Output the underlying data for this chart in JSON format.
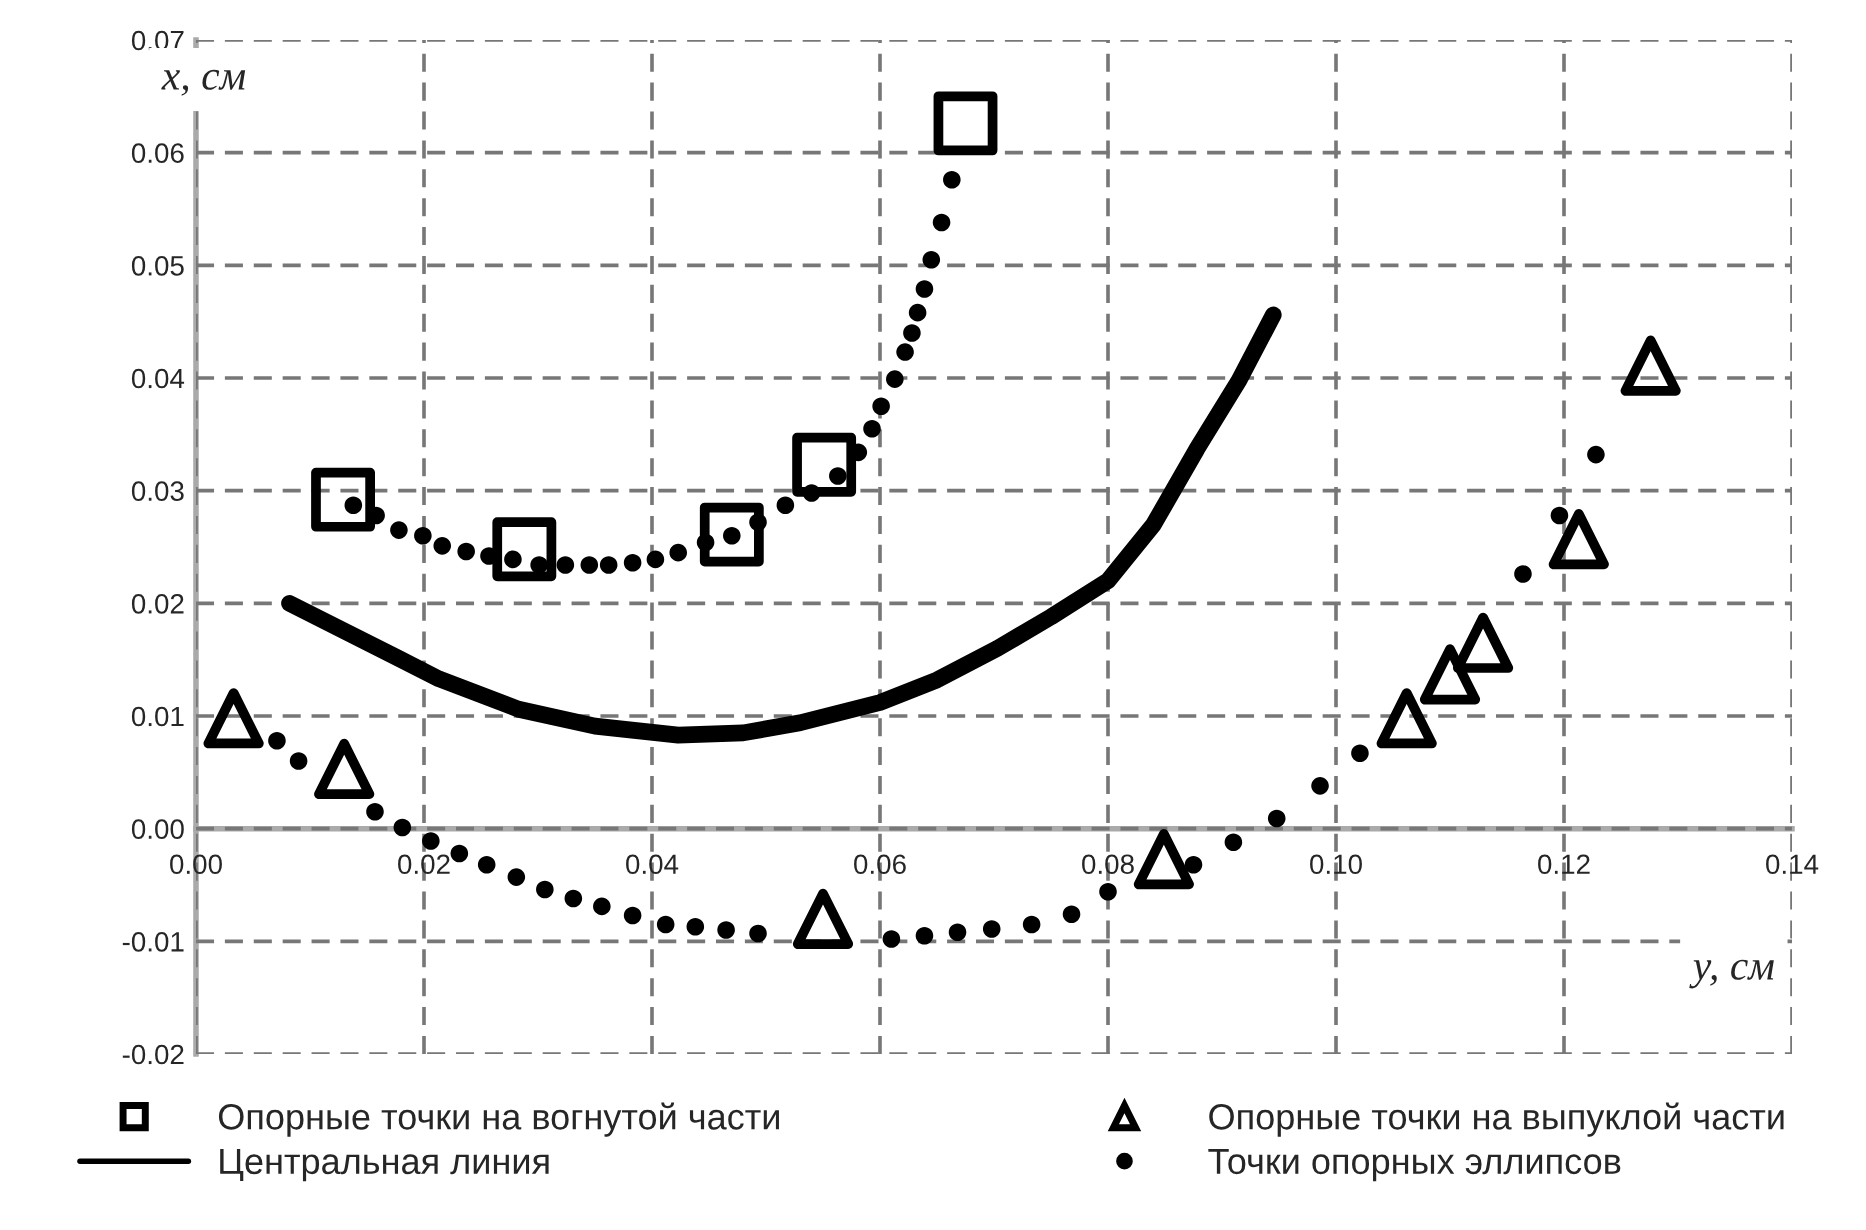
{
  "chart_data": {
    "type": "scatter",
    "xlabel": "y, см",
    "ylabel": "x, см",
    "xlim": [
      0,
      0.14
    ],
    "ylim": [
      -0.02,
      0.07
    ],
    "xticks": [
      {
        "value": 0,
        "label": "0.00"
      },
      {
        "value": 0.02,
        "label": "0.02"
      },
      {
        "value": 0.04,
        "label": "0.04"
      },
      {
        "value": 0.06,
        "label": "0.06"
      },
      {
        "value": 0.08,
        "label": "0.08"
      },
      {
        "value": 0.1,
        "label": "0.10"
      },
      {
        "value": 0.12,
        "label": "0.12"
      },
      {
        "value": 0.14,
        "label": "0.14"
      }
    ],
    "yticks": [
      {
        "value": -0.02,
        "label": "-0.02"
      },
      {
        "value": -0.01,
        "label": "-0.01"
      },
      {
        "value": 0,
        "label": "0.00"
      },
      {
        "value": 0.01,
        "label": "0.01"
      },
      {
        "value": 0.02,
        "label": "0.02"
      },
      {
        "value": 0.03,
        "label": "0.03"
      },
      {
        "value": 0.04,
        "label": "0.04"
      },
      {
        "value": 0.05,
        "label": "0.05"
      },
      {
        "value": 0.06,
        "label": "0.06"
      },
      {
        "value": 0.07,
        "label": "0.07"
      }
    ],
    "grid": true,
    "legend": "bottom",
    "series": [
      {
        "name": "Опорные точки на вогнутой части",
        "marker": "square",
        "color": "#000000",
        "x": [
          0.0129,
          0.0288,
          0.047,
          0.0551,
          0.0675
        ],
        "values": [
          0.0292,
          0.0248,
          0.0261,
          0.0323,
          0.0626
        ]
      },
      {
        "name": "Центральная линия",
        "type": "line",
        "marker": "none",
        "line_style": "solid",
        "color": "#000000",
        "x": [
          0.0082,
          0.0178,
          0.0213,
          0.0283,
          0.035,
          0.0423,
          0.048,
          0.053,
          0.06,
          0.065,
          0.0703,
          0.075,
          0.08,
          0.084,
          0.0878,
          0.0915,
          0.0945
        ],
        "values": [
          0.02,
          0.0151,
          0.0133,
          0.0106,
          0.0091,
          0.0083,
          0.0085,
          0.0094,
          0.0112,
          0.0132,
          0.016,
          0.0188,
          0.022,
          0.027,
          0.0337,
          0.0398,
          0.0456
        ]
      },
      {
        "name": "Опорные точки на выпуклой части",
        "marker": "triangle",
        "color": "#000000",
        "x": [
          0.0033,
          0.013,
          0.055,
          0.0849,
          0.1062,
          0.11,
          0.1129,
          0.1213,
          0.1276
        ],
        "values": [
          0.0098,
          0.0053,
          -0.008,
          -0.0027,
          0.0098,
          0.0137,
          0.0165,
          0.0257,
          0.0411
        ]
      },
      {
        "name": "Точки опорных эллипсов",
        "marker": "circle",
        "color": "#000000",
        "x": [
          0.0138,
          0.0158,
          0.0178,
          0.0199,
          0.0216,
          0.0237,
          0.0257,
          0.0278,
          0.0301,
          0.0324,
          0.0345,
          0.0362,
          0.0383,
          0.0403,
          0.0423,
          0.0447,
          0.047,
          0.0493,
          0.0517,
          0.054,
          0.0563,
          0.0581,
          0.0593,
          0.0601,
          0.0613,
          0.0622,
          0.0628,
          0.0633,
          0.0639,
          0.0645,
          0.0654,
          0.0663,
          0.0071,
          0.009,
          0.0157,
          0.0181,
          0.0206,
          0.0231,
          0.0255,
          0.0281,
          0.0306,
          0.0331,
          0.0356,
          0.0383,
          0.0412,
          0.0438,
          0.0465,
          0.0493,
          0.061,
          0.0639,
          0.0668,
          0.0698,
          0.0733,
          0.0768,
          0.08,
          0.0875,
          0.091,
          0.0948,
          0.0986,
          0.1021,
          0.1164,
          0.1196,
          0.1228
        ],
        "values": [
          0.0287,
          0.0278,
          0.0265,
          0.026,
          0.0251,
          0.0246,
          0.0242,
          0.0239,
          0.0234,
          0.0234,
          0.0234,
          0.0234,
          0.0236,
          0.0239,
          0.0245,
          0.0254,
          0.026,
          0.0272,
          0.0287,
          0.0298,
          0.0313,
          0.0334,
          0.0355,
          0.0375,
          0.0399,
          0.0423,
          0.044,
          0.0458,
          0.0479,
          0.0505,
          0.0538,
          0.0576,
          0.0078,
          0.006,
          0.0015,
          0.0001,
          -0.0011,
          -0.0022,
          -0.0032,
          -0.0043,
          -0.0054,
          -0.0062,
          -0.0069,
          -0.0077,
          -0.0085,
          -0.0087,
          -0.009,
          -0.0093,
          -0.0098,
          -0.0095,
          -0.0092,
          -0.0089,
          -0.0085,
          -0.0076,
          -0.0056,
          -0.0032,
          -0.0012,
          0.0009,
          0.0038,
          0.0067,
          0.0226,
          0.0278,
          0.0332
        ]
      }
    ]
  }
}
